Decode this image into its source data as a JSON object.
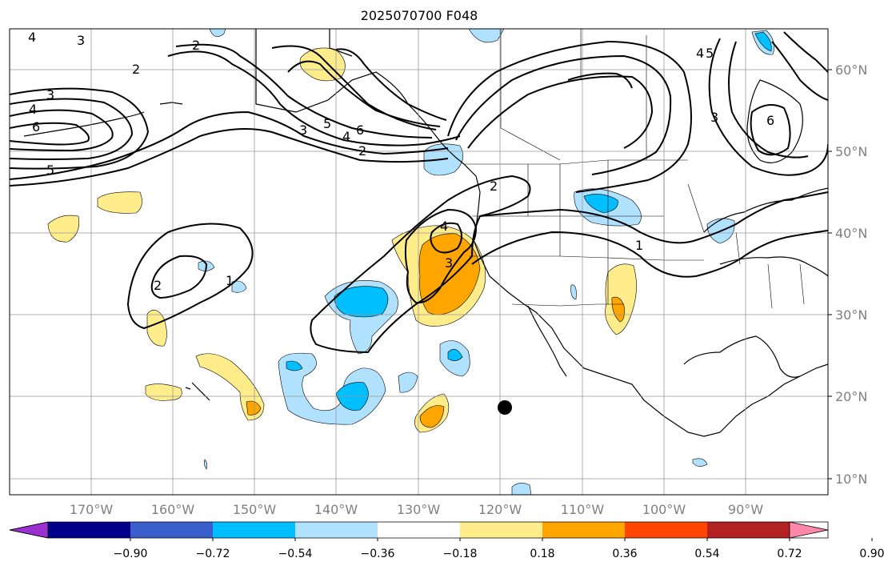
{
  "title": "2025070700 F048",
  "latitude_labels": [
    "60°N",
    "50°N",
    "40°N",
    "30°N",
    "20°N",
    "10°N"
  ],
  "longitude_labels": [
    "170°W",
    "160°W",
    "150°W",
    "140°W",
    "130°W",
    "120°W",
    "110°W",
    "100°W",
    "90°W"
  ],
  "colorbar": {
    "tick_labels": [
      "−0.90",
      "−0.72",
      "−0.54",
      "−0.36",
      "−0.18",
      "0.18",
      "0.36",
      "0.54",
      "0.72",
      "0.90"
    ],
    "colors": [
      "#9b30d0",
      "#00008b",
      "#3a5fcd",
      "#00bfff",
      "#b0e2ff",
      "#ffffff",
      "#ffec8b",
      "#ffa500",
      "#ff4500",
      "#b22222",
      "#ff88aa"
    ]
  },
  "contour_labels": [
    "4",
    "3",
    "2",
    "2",
    "3",
    "4",
    "6",
    "5",
    "3",
    "5",
    "6",
    "4",
    "2",
    "4",
    "5",
    "3",
    "6",
    "2",
    "4",
    "3",
    "2",
    "1",
    "1"
  ],
  "colors": {
    "light_blue": "#b0e2ff",
    "blue": "#00bfff",
    "light_yellow": "#ffec8b",
    "orange": "#ffa500"
  }
}
